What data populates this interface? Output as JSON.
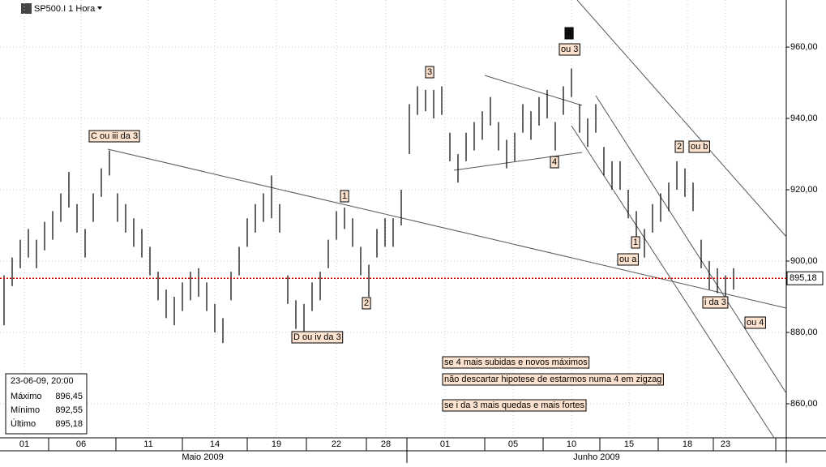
{
  "chart_data": {
    "type": "ohlc",
    "title": "SP500.I 1 Hora",
    "x": [
      0,
      1,
      2,
      3,
      4,
      5,
      6,
      7,
      8,
      9,
      10,
      11,
      12,
      13,
      14,
      15,
      16,
      17,
      18,
      19,
      20,
      21,
      22,
      23,
      24,
      25,
      26,
      27,
      28,
      29,
      30,
      31,
      32,
      33,
      34,
      35,
      36,
      37,
      38,
      39,
      40,
      41,
      42,
      43,
      44,
      45,
      46,
      47,
      48,
      49,
      50,
      51,
      52,
      53,
      54,
      55,
      56,
      57,
      58,
      59,
      60,
      61,
      62,
      63,
      64,
      65,
      66,
      67,
      68,
      69,
      70,
      71,
      72,
      73,
      74,
      75,
      76,
      77,
      78,
      79,
      80,
      81,
      82,
      83,
      84,
      85,
      86,
      87,
      88,
      89,
      90
    ],
    "high": [
      896,
      901,
      906,
      909,
      906,
      911,
      914,
      919,
      925,
      916,
      909,
      919,
      926,
      931,
      919,
      916,
      912,
      909,
      904,
      897,
      892,
      890,
      894,
      897,
      898,
      894,
      888,
      884,
      897,
      904,
      912,
      916,
      919,
      924,
      916,
      896,
      889,
      888,
      894,
      897,
      906,
      914,
      915,
      912,
      904,
      899,
      909,
      912,
      912,
      920,
      944,
      949,
      948,
      948,
      949,
      936,
      930,
      936,
      939,
      942,
      946,
      939,
      934,
      936,
      944,
      942,
      946,
      948,
      939,
      949,
      954,
      944,
      940,
      944,
      932,
      928,
      928,
      920,
      914,
      909,
      916,
      919,
      922,
      928,
      926,
      922,
      906,
      900,
      898,
      896,
      898
    ],
    "low": [
      882,
      893,
      898,
      901,
      898,
      903,
      906,
      911,
      915,
      908,
      901,
      911,
      918,
      924,
      911,
      908,
      904,
      901,
      896,
      889,
      884,
      882,
      886,
      889,
      890,
      886,
      880,
      877,
      889,
      896,
      904,
      908,
      911,
      912,
      908,
      888,
      881,
      880,
      886,
      889,
      898,
      906,
      909,
      904,
      896,
      890,
      901,
      904,
      904,
      910,
      930,
      941,
      942,
      940,
      941,
      928,
      922,
      928,
      931,
      934,
      938,
      931,
      926,
      928,
      936,
      934,
      938,
      940,
      931,
      941,
      946,
      936,
      932,
      936,
      924,
      920,
      920,
      912,
      906,
      901,
      908,
      911,
      914,
      920,
      918,
      914,
      898,
      892,
      891,
      889,
      892
    ],
    "color": "#000000",
    "xlim": [
      -0.5,
      96.5
    ],
    "xticks": [
      {
        "value": 2.5,
        "label": "01"
      },
      {
        "value": 9.5,
        "label": "06"
      },
      {
        "value": 17.8,
        "label": "11"
      },
      {
        "value": 26,
        "label": "14"
      },
      {
        "value": 33.6,
        "label": "19"
      },
      {
        "value": 41,
        "label": "22"
      },
      {
        "value": 47.1,
        "label": "28"
      },
      {
        "value": 54.4,
        "label": "01"
      },
      {
        "value": 62.8,
        "label": "05"
      },
      {
        "value": 70,
        "label": "10"
      },
      {
        "value": 77.1,
        "label": "15"
      },
      {
        "value": 84.3,
        "label": "18"
      },
      {
        "value": 89,
        "label": "23"
      }
    ],
    "months": [
      "Maio 2009",
      "Junho 2009"
    ],
    "ylim": [
      850.45,
      973.2
    ],
    "yticks": [
      {
        "value": 860,
        "label": "860,00"
      },
      {
        "value": 880,
        "label": "880,00"
      },
      {
        "value": 900,
        "label": "900,00"
      },
      {
        "value": 920,
        "label": "920,00"
      },
      {
        "value": 940,
        "label": "940,00"
      },
      {
        "value": 960,
        "label": "960,00"
      }
    ],
    "last": {
      "value": 895.18,
      "label": "895,18",
      "color": "#cc0000"
    },
    "annotations": [
      "C ou iii da 3",
      "1",
      "2",
      "3",
      "4",
      "ou 3",
      "4",
      "D ou iv da 3",
      "2",
      "ou b",
      "1",
      "ou a",
      "i da 3",
      "ou 4",
      "se 4 mais subidas e novos máximos",
      "não descartar hipotese de estarmos numa 4 em zigzag",
      "se i da 3 mais quedas e mais fortes"
    ],
    "info": {
      "date": "23-06-09, 20:00",
      "rows": [
        [
          "Máximo",
          "896,45"
        ],
        [
          "Mínimo",
          "892,55"
        ],
        [
          "Último",
          "895,18"
        ]
      ]
    }
  }
}
